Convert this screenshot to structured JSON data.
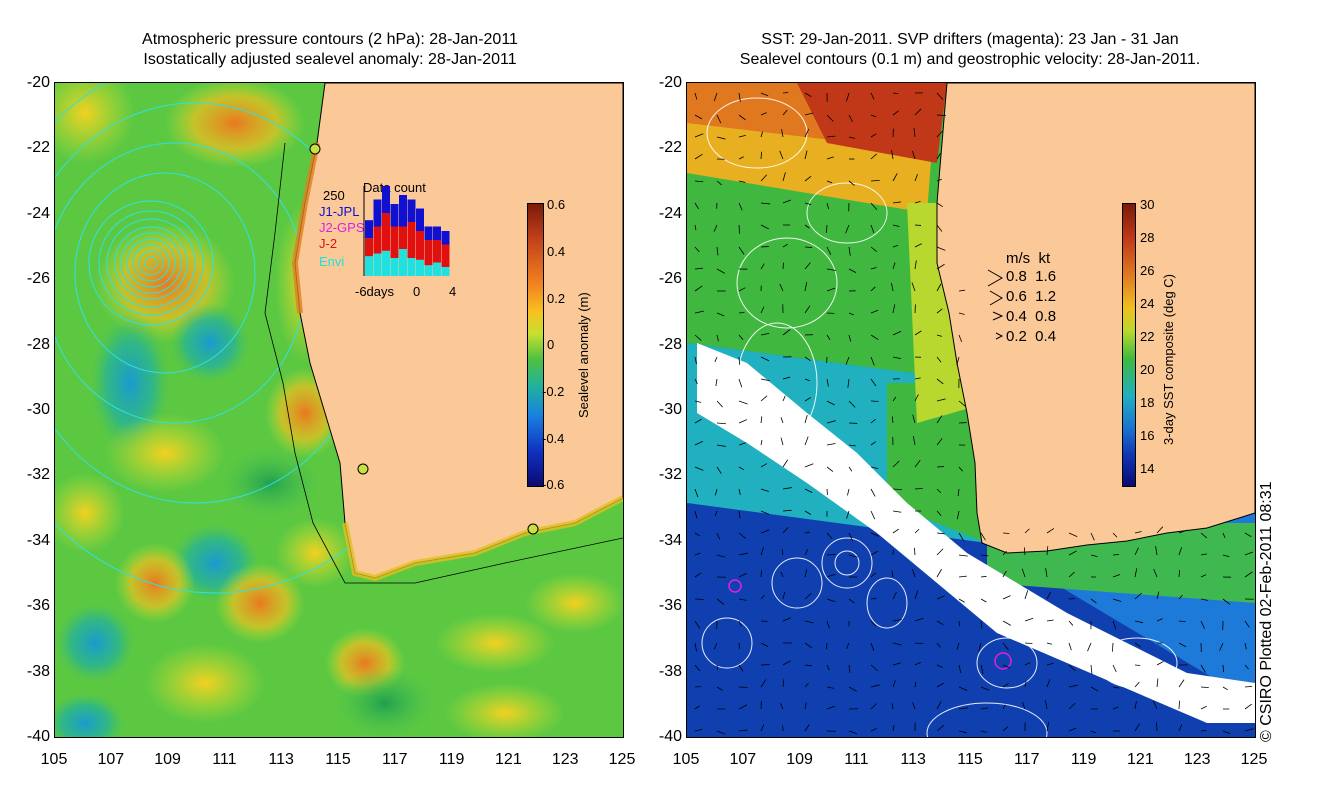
{
  "left_panel": {
    "title_line1": "Atmospheric pressure contours (2 hPa): 28-Jan-2011",
    "title_line2": "Isostatically adjusted sealevel anomaly: 28-Jan-2011",
    "y_ticks": [
      "-20",
      "-22",
      "-24",
      "-26",
      "-28",
      "-30",
      "-32",
      "-34",
      "-36",
      "-38",
      "-40"
    ],
    "x_ticks": [
      "105",
      "107",
      "109",
      "111",
      "113",
      "115",
      "117",
      "119",
      "121",
      "123",
      "125"
    ],
    "colorbar": {
      "label": "Sealevel anomaly (m)",
      "ticks": [
        "0.6",
        "0.4",
        "0.2",
        "0",
        "-0.2",
        "-0.4",
        "-0.6"
      ]
    },
    "data_count": {
      "title": "Data count",
      "max_label": "250",
      "x_labels": [
        "-6days",
        "0",
        "4"
      ],
      "legend": [
        {
          "name": "J1-JPL",
          "color": "#1010d0"
        },
        {
          "name": "J2-GPS",
          "color": "#e020e0"
        },
        {
          "name": "J-2",
          "color": "#e01010"
        },
        {
          "name": "Envi",
          "color": "#20e0e0"
        }
      ],
      "bars": [
        {
          "envi": 0.22,
          "j2": 0.2,
          "j1": 0.2
        },
        {
          "envi": 0.25,
          "j2": 0.3,
          "j1": 0.3
        },
        {
          "envi": 0.28,
          "j2": 0.42,
          "j1": 0.35
        },
        {
          "envi": 0.2,
          "j2": 0.35,
          "j1": 0.25
        },
        {
          "envi": 0.3,
          "j2": 0.25,
          "j1": 0.35
        },
        {
          "envi": 0.2,
          "j2": 0.4,
          "j1": 0.25
        },
        {
          "envi": 0.18,
          "j2": 0.32,
          "j1": 0.25
        },
        {
          "envi": 0.12,
          "j2": 0.28,
          "j1": 0.15
        },
        {
          "envi": 0.15,
          "j2": 0.25,
          "j1": 0.15
        },
        {
          "envi": 0.1,
          "j2": 0.25,
          "j1": 0.15
        }
      ]
    }
  },
  "right_panel": {
    "title_line1": "SST: 29-Jan-2011. SVP drifters (magenta): 23 Jan - 31 Jan",
    "title_line2": "Sealevel contours (0.1 m) and geostrophic velocity: 28-Jan-2011.",
    "y_ticks": [
      "-20",
      "-22",
      "-24",
      "-26",
      "-28",
      "-30",
      "-32",
      "-34",
      "-36",
      "-38",
      "-40"
    ],
    "x_ticks": [
      "105",
      "107",
      "109",
      "111",
      "113",
      "115",
      "117",
      "119",
      "121",
      "123",
      "125"
    ],
    "colorbar": {
      "label": "3-day SST composite (deg C)",
      "ticks": [
        "30",
        "28",
        "26",
        "24",
        "22",
        "20",
        "18",
        "16",
        "14"
      ]
    },
    "velocity_legend": {
      "header": "m/s  kt",
      "rows": [
        "0.8  1.6",
        "0.6  1.2",
        "0.4  0.8",
        "0.2  0.4"
      ]
    }
  },
  "credit": "© CSIRO Plotted 02-Feb-2011 08:31",
  "colors": {
    "land": "#fbc997",
    "coast": "#000000",
    "contour_left": "#30e0e0",
    "contour_right": "#ffffff"
  }
}
